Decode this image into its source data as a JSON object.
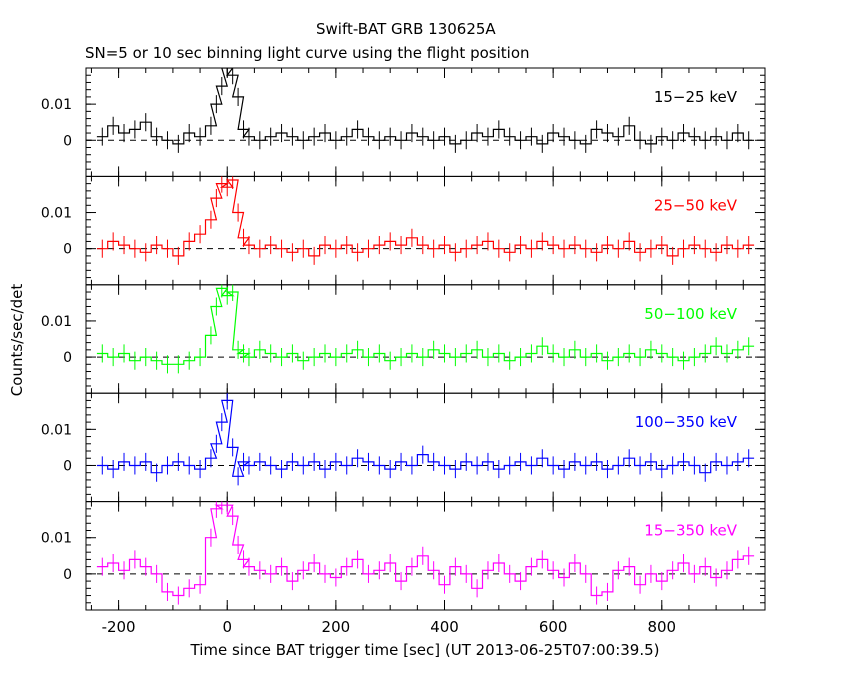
{
  "chart_data": {
    "type": "line",
    "title": "Swift-BAT GRB 130625A",
    "subtitle": "SN=5 or 10 sec binning light curve using the flight position",
    "xlabel": "Time since BAT trigger time [sec] (UT 2013-06-25T07:00:39.5)",
    "ylabel": "Counts/sec/det",
    "xlim": [
      -260,
      990
    ],
    "ylim": [
      -0.01,
      0.02
    ],
    "x_ticks": [
      "-200",
      "0",
      "200",
      "400",
      "600",
      "800"
    ],
    "y_ticks": [
      "0",
      "0.01"
    ],
    "panels": [
      {
        "name": "15-25 keV",
        "label": "15−25 keV",
        "color": "#000000",
        "x": [
          -230,
          -210,
          -190,
          -170,
          -150,
          -130,
          -110,
          -90,
          -70,
          -50,
          -30,
          -20,
          -10,
          0,
          10,
          20,
          30,
          40,
          60,
          80,
          100,
          120,
          140,
          160,
          180,
          200,
          220,
          240,
          260,
          280,
          300,
          320,
          340,
          360,
          380,
          400,
          420,
          440,
          460,
          480,
          500,
          520,
          540,
          560,
          580,
          600,
          620,
          640,
          660,
          680,
          700,
          720,
          740,
          760,
          780,
          800,
          820,
          840,
          860,
          880,
          900,
          920,
          940,
          960
        ],
        "y": [
          0.001,
          0.004,
          0.002,
          0.003,
          0.005,
          0.001,
          0.0,
          -0.001,
          0.002,
          0.001,
          0.004,
          0.01,
          0.015,
          0.02,
          0.018,
          0.012,
          0.003,
          0.001,
          0.0,
          0.001,
          0.002,
          0.001,
          0.0,
          0.001,
          0.002,
          0.0,
          0.001,
          0.003,
          0.001,
          0.0,
          0.001,
          0.0,
          0.002,
          0.001,
          0.0,
          0.001,
          -0.001,
          0.0,
          0.002,
          0.001,
          0.003,
          0.001,
          0.0,
          0.001,
          -0.001,
          0.002,
          0.001,
          0.0,
          -0.001,
          0.003,
          0.002,
          0.001,
          0.004,
          0.0,
          -0.001,
          0.001,
          0.0,
          0.002,
          0.001,
          0.0,
          0.001,
          0.0,
          0.002,
          0.0
        ]
      },
      {
        "name": "25-50 keV",
        "label": "25−50 keV",
        "color": "#ff0000",
        "x": [
          -230,
          -210,
          -190,
          -170,
          -150,
          -130,
          -110,
          -90,
          -70,
          -50,
          -30,
          -20,
          -10,
          0,
          10,
          20,
          30,
          40,
          60,
          80,
          100,
          120,
          140,
          160,
          180,
          200,
          220,
          240,
          260,
          280,
          300,
          320,
          340,
          360,
          380,
          400,
          420,
          440,
          460,
          480,
          500,
          520,
          540,
          560,
          580,
          600,
          620,
          640,
          660,
          680,
          700,
          720,
          740,
          760,
          780,
          800,
          820,
          840,
          860,
          880,
          900,
          920,
          940,
          960
        ],
        "y": [
          0.0,
          0.002,
          0.001,
          0.0,
          -0.001,
          0.001,
          0.0,
          -0.002,
          0.002,
          0.004,
          0.008,
          0.014,
          0.018,
          0.017,
          0.019,
          0.01,
          0.003,
          0.001,
          0.0,
          0.001,
          0.0,
          -0.001,
          0.0,
          -0.002,
          0.001,
          0.0,
          0.001,
          -0.001,
          0.0,
          0.001,
          0.002,
          0.001,
          0.003,
          0.001,
          0.0,
          0.001,
          -0.001,
          0.0,
          0.001,
          0.002,
          0.0,
          -0.001,
          0.001,
          0.0,
          0.002,
          0.001,
          0.0,
          0.001,
          0.0,
          -0.001,
          0.001,
          0.0,
          0.002,
          -0.001,
          0.0,
          0.001,
          -0.002,
          0.0,
          0.001,
          0.0,
          -0.001,
          0.001,
          0.0,
          0.001
        ]
      },
      {
        "name": "50-100 keV",
        "label": "50−100 keV",
        "color": "#00ff00",
        "x": [
          -230,
          -210,
          -190,
          -170,
          -150,
          -130,
          -110,
          -90,
          -70,
          -50,
          -30,
          -20,
          -10,
          0,
          10,
          20,
          30,
          40,
          60,
          80,
          100,
          120,
          140,
          160,
          180,
          200,
          220,
          240,
          260,
          280,
          300,
          320,
          340,
          360,
          380,
          400,
          420,
          440,
          460,
          480,
          500,
          520,
          540,
          560,
          580,
          600,
          620,
          640,
          660,
          680,
          700,
          720,
          740,
          760,
          780,
          800,
          820,
          840,
          860,
          880,
          900,
          920,
          940,
          960
        ],
        "y": [
          0.001,
          0.0,
          0.001,
          -0.001,
          0.0,
          -0.001,
          -0.002,
          -0.002,
          -0.001,
          0.0,
          0.006,
          0.014,
          0.019,
          0.017,
          0.018,
          0.002,
          0.001,
          0.0,
          0.002,
          0.001,
          0.0,
          0.001,
          -0.001,
          0.0,
          0.001,
          0.0,
          0.001,
          0.002,
          0.0,
          0.001,
          -0.001,
          0.0,
          0.001,
          0.0,
          0.002,
          0.001,
          0.0,
          0.001,
          0.002,
          0.0,
          0.001,
          -0.001,
          0.0,
          0.001,
          0.003,
          0.001,
          0.0,
          0.002,
          0.0,
          0.001,
          -0.001,
          0.0,
          0.001,
          0.0,
          0.002,
          0.001,
          0.0,
          -0.001,
          0.0,
          0.001,
          0.003,
          0.001,
          0.002,
          0.003
        ]
      },
      {
        "name": "100-350 keV",
        "label": "100−350 keV",
        "color": "#0000ff",
        "x": [
          -230,
          -210,
          -190,
          -170,
          -150,
          -130,
          -110,
          -90,
          -70,
          -50,
          -30,
          -20,
          -10,
          0,
          10,
          20,
          30,
          40,
          60,
          80,
          100,
          120,
          140,
          160,
          180,
          200,
          220,
          240,
          260,
          280,
          300,
          320,
          340,
          360,
          380,
          400,
          420,
          440,
          460,
          480,
          500,
          520,
          540,
          560,
          580,
          600,
          620,
          640,
          660,
          680,
          700,
          720,
          740,
          760,
          780,
          800,
          820,
          840,
          860,
          880,
          900,
          920,
          940,
          960
        ],
        "y": [
          0.0,
          -0.001,
          0.001,
          0.0,
          0.001,
          -0.002,
          0.0,
          0.001,
          0.0,
          -0.001,
          0.002,
          0.006,
          0.012,
          0.018,
          0.005,
          -0.003,
          0.001,
          0.0,
          0.001,
          0.0,
          -0.001,
          0.001,
          0.0,
          0.001,
          -0.001,
          0.001,
          0.0,
          0.002,
          0.001,
          0.0,
          -0.001,
          0.001,
          0.0,
          0.003,
          0.001,
          0.0,
          -0.001,
          0.001,
          0.0,
          0.001,
          -0.001,
          0.0,
          0.001,
          0.0,
          0.002,
          0.0,
          -0.001,
          0.001,
          0.0,
          0.001,
          -0.001,
          0.0,
          0.002,
          0.0,
          0.001,
          -0.001,
          0.0,
          0.001,
          0.0,
          -0.002,
          0.001,
          0.0,
          0.001,
          0.002
        ]
      },
      {
        "name": "15-350 keV",
        "label": "15−350 keV",
        "color": "#ff00ff",
        "x": [
          -230,
          -210,
          -190,
          -170,
          -150,
          -130,
          -110,
          -90,
          -70,
          -50,
          -30,
          -20,
          -10,
          0,
          10,
          20,
          30,
          40,
          60,
          80,
          100,
          120,
          140,
          160,
          180,
          200,
          220,
          240,
          260,
          280,
          300,
          320,
          340,
          360,
          380,
          400,
          420,
          440,
          460,
          480,
          500,
          520,
          540,
          560,
          580,
          600,
          620,
          640,
          660,
          680,
          700,
          720,
          740,
          760,
          780,
          800,
          820,
          840,
          860,
          880,
          900,
          920,
          940,
          960
        ],
        "y": [
          0.002,
          0.003,
          0.001,
          0.004,
          0.002,
          0.0,
          -0.005,
          -0.006,
          -0.004,
          -0.003,
          0.01,
          0.018,
          0.019,
          0.019,
          0.016,
          0.008,
          0.004,
          0.002,
          0.001,
          0.0,
          0.002,
          -0.002,
          0.001,
          0.003,
          0.0,
          -0.001,
          0.002,
          0.004,
          0.0,
          0.001,
          0.003,
          -0.002,
          0.002,
          0.005,
          0.001,
          -0.003,
          0.002,
          0.0,
          -0.004,
          0.001,
          0.003,
          0.0,
          -0.002,
          0.002,
          0.004,
          0.001,
          -0.001,
          0.003,
          0.0,
          -0.006,
          -0.005,
          0.001,
          0.002,
          -0.003,
          0.0,
          -0.002,
          0.001,
          0.003,
          0.0,
          0.002,
          -0.001,
          0.001,
          0.004,
          0.005
        ]
      }
    ]
  }
}
